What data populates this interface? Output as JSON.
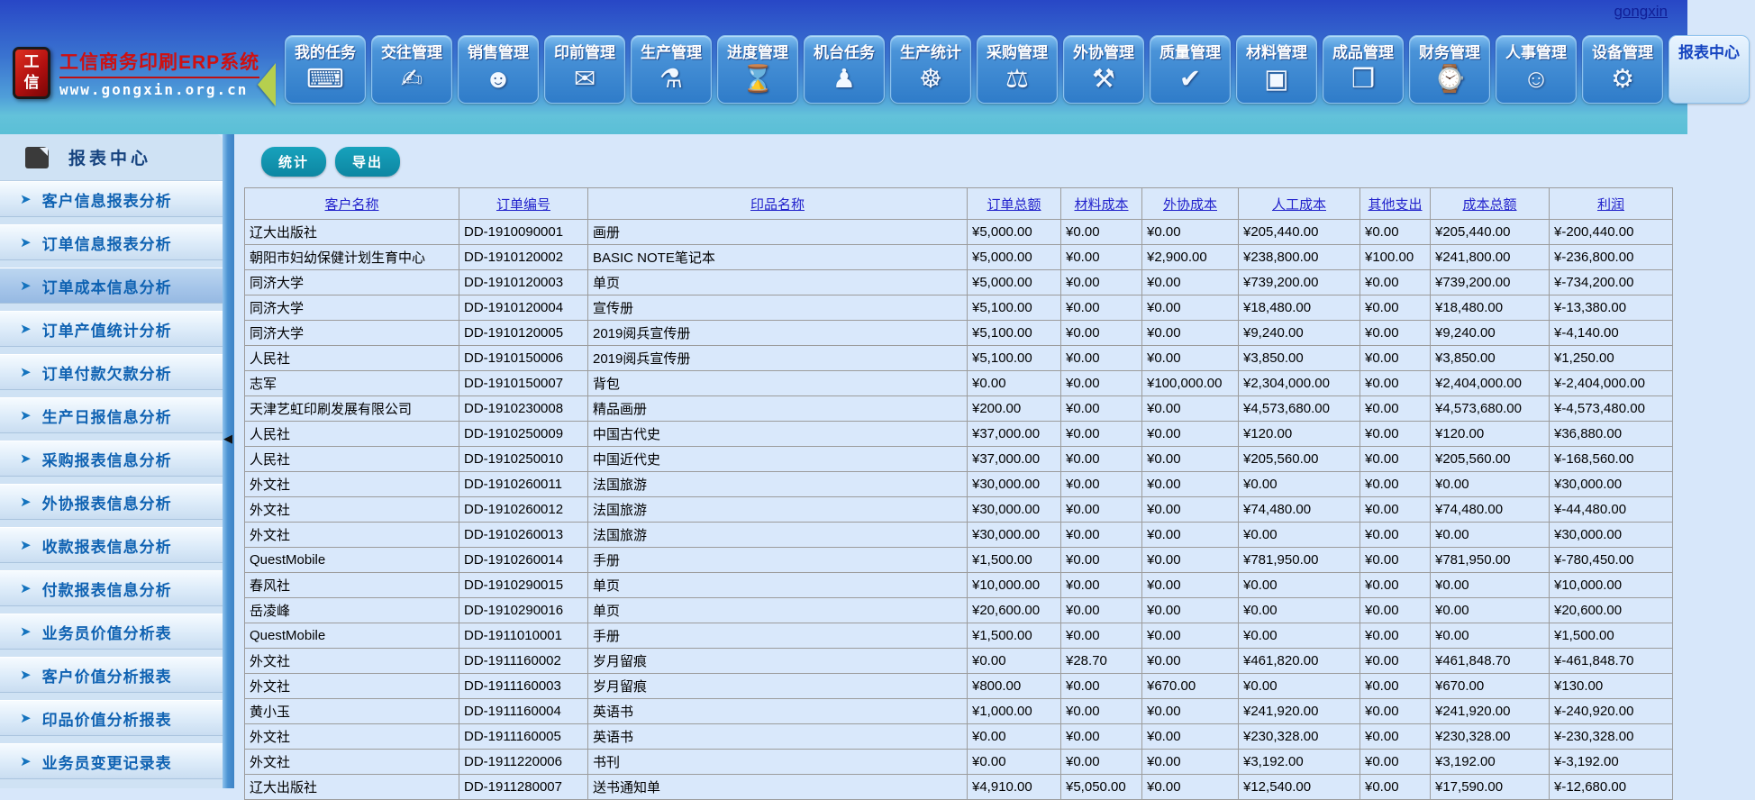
{
  "page": {
    "user_link": "gongxin"
  },
  "brand": {
    "logo_char_top": "工",
    "logo_char_bottom": "信",
    "title": "工信商务印刷ERP系统",
    "url": "www.gongxin.org.cn"
  },
  "colors": {
    "accent_teal": "#0d86a2",
    "header_link_blue": "#2222cc",
    "sidebar_text_blue": "#0f62b2",
    "brand_red": "#cf1010",
    "nav_button_blue": "#2f7cc9"
  },
  "nav": {
    "items": [
      {
        "id": "my-tasks",
        "label": "我的任务",
        "icon": "computer-icon",
        "glyph": "⌨"
      },
      {
        "id": "contact-mgmt",
        "label": "交往管理",
        "icon": "signature-icon",
        "glyph": "✍"
      },
      {
        "id": "sales-mgmt",
        "label": "销售管理",
        "icon": "people-icon",
        "glyph": "☻"
      },
      {
        "id": "prepress-mgmt",
        "label": "印前管理",
        "icon": "paper-icon",
        "glyph": "✉"
      },
      {
        "id": "production-mgmt",
        "label": "生产管理",
        "icon": "flask-icon",
        "glyph": "⚗"
      },
      {
        "id": "progress-mgmt",
        "label": "进度管理",
        "icon": "folder-clock-icon",
        "glyph": "⌛"
      },
      {
        "id": "machine-tasks",
        "label": "机台任务",
        "icon": "operator-icon",
        "glyph": "♟"
      },
      {
        "id": "production-stats",
        "label": "生产统计",
        "icon": "gauge-icon",
        "glyph": "☸"
      },
      {
        "id": "purchase-mgmt",
        "label": "采购管理",
        "icon": "shopping-cart-icon",
        "glyph": "⚖"
      },
      {
        "id": "outsource-mgmt",
        "label": "外协管理",
        "icon": "tools-icon",
        "glyph": "⚒"
      },
      {
        "id": "quality-mgmt",
        "label": "质量管理",
        "icon": "inspect-doc-icon",
        "glyph": "✔"
      },
      {
        "id": "material-mgmt",
        "label": "材料管理",
        "icon": "box-icon",
        "glyph": "▣"
      },
      {
        "id": "finished-goods-mgmt",
        "label": "成品管理",
        "icon": "folders-icon",
        "glyph": "❒"
      },
      {
        "id": "finance-mgmt",
        "label": "财务管理",
        "icon": "clock-coins-icon",
        "glyph": "⌚"
      },
      {
        "id": "hr-mgmt",
        "label": "人事管理",
        "icon": "staff-icon",
        "glyph": "☺"
      },
      {
        "id": "equipment-mgmt",
        "label": "设备管理",
        "icon": "machine-icon",
        "glyph": "⚙"
      }
    ],
    "partial_item": {
      "id": "report-center",
      "label": "报表中心"
    }
  },
  "sidebar": {
    "header": {
      "label": "报表中心",
      "icon": "book-icon"
    },
    "items": [
      {
        "id": "customer-info-report",
        "label": "客户信息报表分析",
        "selected": false
      },
      {
        "id": "order-info-report",
        "label": "订单信息报表分析",
        "selected": false
      },
      {
        "id": "order-cost-info",
        "label": "订单成本信息分析",
        "selected": true
      },
      {
        "id": "order-output-stats",
        "label": "订单产值统计分析",
        "selected": false
      },
      {
        "id": "order-payment-debt",
        "label": "订单付款欠款分析",
        "selected": false
      },
      {
        "id": "production-daily-report",
        "label": "生产日报信息分析",
        "selected": false
      },
      {
        "id": "purchase-report",
        "label": "采购报表信息分析",
        "selected": false
      },
      {
        "id": "outsource-report",
        "label": "外协报表信息分析",
        "selected": false
      },
      {
        "id": "receipt-report",
        "label": "收款报表信息分析",
        "selected": false
      },
      {
        "id": "payment-report",
        "label": "付款报表信息分析",
        "selected": false
      },
      {
        "id": "salesman-value",
        "label": "业务员价值分析表",
        "selected": false
      },
      {
        "id": "customer-value",
        "label": "客户价值分析报表",
        "selected": false
      },
      {
        "id": "product-value",
        "label": "印品价值分析报表",
        "selected": false
      },
      {
        "id": "salesman-change-log",
        "label": "业务员变更记录表",
        "selected": false
      }
    ]
  },
  "toolbar": {
    "stats_label": "统计",
    "export_label": "导出"
  },
  "table": {
    "headers": [
      "客户名称",
      "订单编号",
      "印品名称",
      "订单总额",
      "材料成本",
      "外协成本",
      "人工成本",
      "其他支出",
      "成本总额",
      "利润"
    ],
    "column_keys": [
      "customer",
      "order-no",
      "product",
      "order-total",
      "material-cost",
      "outsource-cost",
      "labor-cost",
      "other-expense",
      "cost-total",
      "profit"
    ],
    "rows": [
      [
        "辽大出版社",
        "DD-1910090001",
        "画册",
        "¥5,000.00",
        "¥0.00",
        "¥0.00",
        "¥205,440.00",
        "¥0.00",
        "¥205,440.00",
        "¥-200,440.00"
      ],
      [
        "朝阳市妇幼保健计划生育中心",
        "DD-1910120002",
        "BASIC NOTE笔记本",
        "¥5,000.00",
        "¥0.00",
        "¥2,900.00",
        "¥238,800.00",
        "¥100.00",
        "¥241,800.00",
        "¥-236,800.00"
      ],
      [
        "同济大学",
        "DD-1910120003",
        "单页",
        "¥5,000.00",
        "¥0.00",
        "¥0.00",
        "¥739,200.00",
        "¥0.00",
        "¥739,200.00",
        "¥-734,200.00"
      ],
      [
        "同济大学",
        "DD-1910120004",
        "宣传册",
        "¥5,100.00",
        "¥0.00",
        "¥0.00",
        "¥18,480.00",
        "¥0.00",
        "¥18,480.00",
        "¥-13,380.00"
      ],
      [
        "同济大学",
        "DD-1910120005",
        "2019阅兵宣传册",
        "¥5,100.00",
        "¥0.00",
        "¥0.00",
        "¥9,240.00",
        "¥0.00",
        "¥9,240.00",
        "¥-4,140.00"
      ],
      [
        "人民社",
        "DD-1910150006",
        "2019阅兵宣传册",
        "¥5,100.00",
        "¥0.00",
        "¥0.00",
        "¥3,850.00",
        "¥0.00",
        "¥3,850.00",
        "¥1,250.00"
      ],
      [
        "志军",
        "DD-1910150007",
        "背包",
        "¥0.00",
        "¥0.00",
        "¥100,000.00",
        "¥2,304,000.00",
        "¥0.00",
        "¥2,404,000.00",
        "¥-2,404,000.00"
      ],
      [
        "天津艺虹印刷发展有限公司",
        "DD-1910230008",
        "精品画册",
        "¥200.00",
        "¥0.00",
        "¥0.00",
        "¥4,573,680.00",
        "¥0.00",
        "¥4,573,680.00",
        "¥-4,573,480.00"
      ],
      [
        "人民社",
        "DD-1910250009",
        "中国古代史",
        "¥37,000.00",
        "¥0.00",
        "¥0.00",
        "¥120.00",
        "¥0.00",
        "¥120.00",
        "¥36,880.00"
      ],
      [
        "人民社",
        "DD-1910250010",
        "中国近代史",
        "¥37,000.00",
        "¥0.00",
        "¥0.00",
        "¥205,560.00",
        "¥0.00",
        "¥205,560.00",
        "¥-168,560.00"
      ],
      [
        "外文社",
        "DD-1910260011",
        "法国旅游",
        "¥30,000.00",
        "¥0.00",
        "¥0.00",
        "¥0.00",
        "¥0.00",
        "¥0.00",
        "¥30,000.00"
      ],
      [
        "外文社",
        "DD-1910260012",
        "法国旅游",
        "¥30,000.00",
        "¥0.00",
        "¥0.00",
        "¥74,480.00",
        "¥0.00",
        "¥74,480.00",
        "¥-44,480.00"
      ],
      [
        "外文社",
        "DD-1910260013",
        "法国旅游",
        "¥30,000.00",
        "¥0.00",
        "¥0.00",
        "¥0.00",
        "¥0.00",
        "¥0.00",
        "¥30,000.00"
      ],
      [
        "QuestMobile",
        "DD-1910260014",
        "手册",
        "¥1,500.00",
        "¥0.00",
        "¥0.00",
        "¥781,950.00",
        "¥0.00",
        "¥781,950.00",
        "¥-780,450.00"
      ],
      [
        "春风社",
        "DD-1910290015",
        "单页",
        "¥10,000.00",
        "¥0.00",
        "¥0.00",
        "¥0.00",
        "¥0.00",
        "¥0.00",
        "¥10,000.00"
      ],
      [
        "岳凌峰",
        "DD-1910290016",
        "单页",
        "¥20,600.00",
        "¥0.00",
        "¥0.00",
        "¥0.00",
        "¥0.00",
        "¥0.00",
        "¥20,600.00"
      ],
      [
        "QuestMobile",
        "DD-1911010001",
        "手册",
        "¥1,500.00",
        "¥0.00",
        "¥0.00",
        "¥0.00",
        "¥0.00",
        "¥0.00",
        "¥1,500.00"
      ],
      [
        "外文社",
        "DD-1911160002",
        "岁月留痕",
        "¥0.00",
        "¥28.70",
        "¥0.00",
        "¥461,820.00",
        "¥0.00",
        "¥461,848.70",
        "¥-461,848.70"
      ],
      [
        "外文社",
        "DD-1911160003",
        "岁月留痕",
        "¥800.00",
        "¥0.00",
        "¥670.00",
        "¥0.00",
        "¥0.00",
        "¥670.00",
        "¥130.00"
      ],
      [
        "黄小玉",
        "DD-1911160004",
        "英语书",
        "¥1,000.00",
        "¥0.00",
        "¥0.00",
        "¥241,920.00",
        "¥0.00",
        "¥241,920.00",
        "¥-240,920.00"
      ],
      [
        "外文社",
        "DD-1911160005",
        "英语书",
        "¥0.00",
        "¥0.00",
        "¥0.00",
        "¥230,328.00",
        "¥0.00",
        "¥230,328.00",
        "¥-230,328.00"
      ],
      [
        "外文社",
        "DD-1911220006",
        "书刊",
        "¥0.00",
        "¥0.00",
        "¥0.00",
        "¥3,192.00",
        "¥0.00",
        "¥3,192.00",
        "¥-3,192.00"
      ],
      [
        "辽大出版社",
        "DD-1911280007",
        "送书通知单",
        "¥4,910.00",
        "¥5,050.00",
        "¥0.00",
        "¥12,540.00",
        "¥0.00",
        "¥17,590.00",
        "¥-12,680.00"
      ]
    ]
  }
}
